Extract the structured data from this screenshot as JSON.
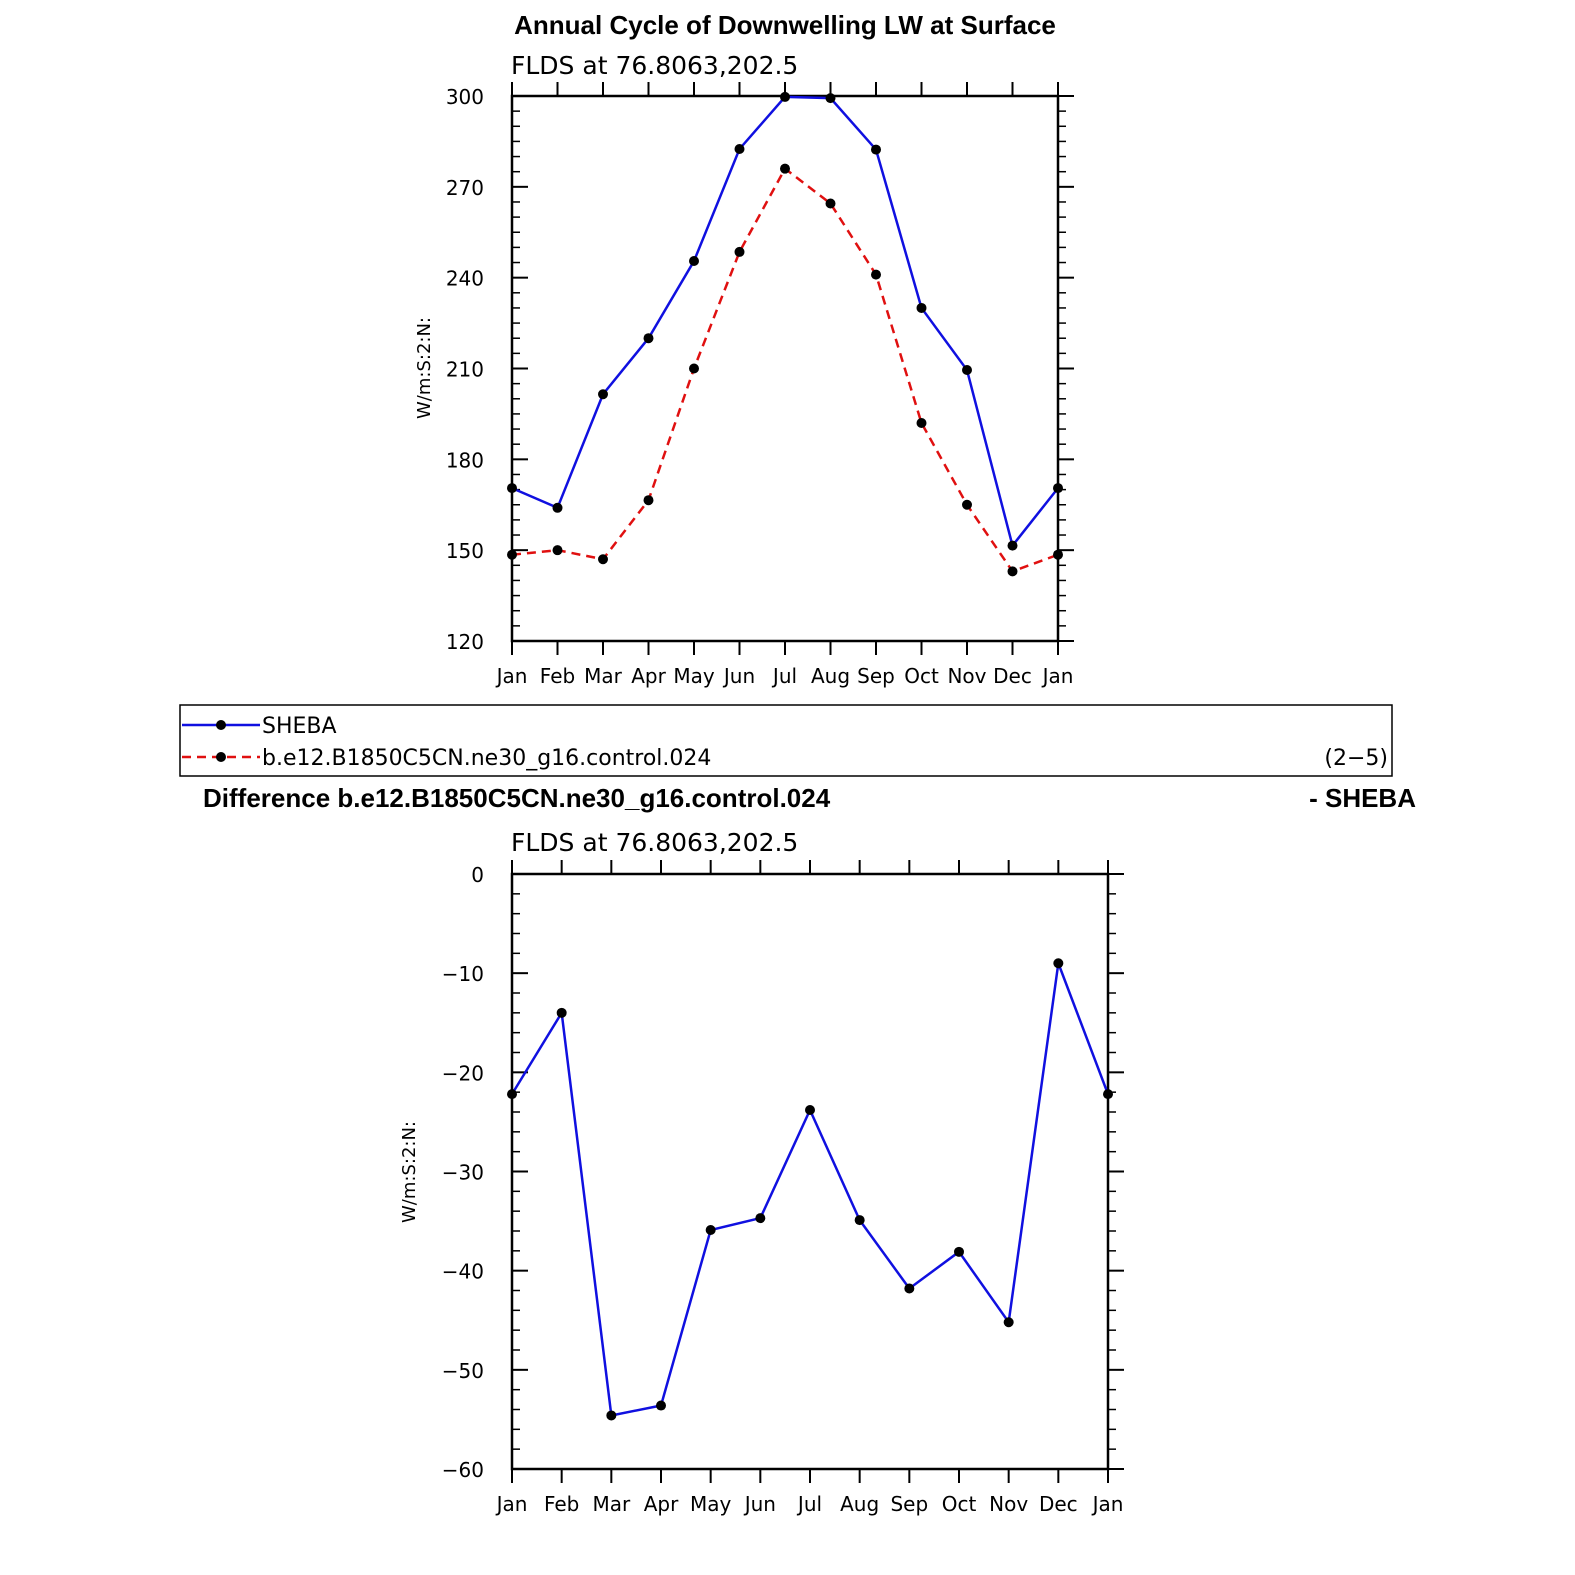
{
  "panel_label": "(2−5)",
  "colors": {
    "sheba": "#1010e0",
    "model": "#e01010",
    "marker": "#000000"
  },
  "legend": {
    "items": [
      {
        "label": "SHEBA",
        "color": "#1010e0",
        "dashed": false
      },
      {
        "label": "b.e12.B1850C5CN.ne30_g16.control.024",
        "color": "#e01010",
        "dashed": true
      }
    ]
  },
  "chart_data": [
    {
      "type": "line",
      "title": "Annual Cycle of Downwelling LW at Surface",
      "subtitle": "FLDS at 76.8063,202.5",
      "ylabel": "W/m:S:2:N:",
      "xlabel": "",
      "categories": [
        "Jan",
        "Feb",
        "Mar",
        "Apr",
        "May",
        "Jun",
        "Jul",
        "Aug",
        "Sep",
        "Oct",
        "Nov",
        "Dec",
        "Jan"
      ],
      "ylim": [
        120,
        300
      ],
      "yticks": [
        120,
        150,
        180,
        210,
        240,
        270,
        300
      ],
      "yminor_step": 5,
      "series": [
        {
          "name": "SHEBA",
          "style": "solid",
          "color": "#1010e0",
          "values": [
            170.5,
            164,
            201.5,
            220,
            245.5,
            282.5,
            299.7,
            299.3,
            282.3,
            230,
            209.5,
            151.5,
            170.5
          ]
        },
        {
          "name": "b.e12.B1850C5CN.ne30_g16.control.024",
          "style": "dashed",
          "color": "#e01010",
          "values": [
            148.5,
            150,
            147,
            166.5,
            210,
            248.5,
            276,
            264.5,
            241,
            192,
            165,
            143,
            148.5
          ]
        }
      ]
    },
    {
      "type": "line",
      "title": "Difference b.e12.B1850C5CN.ne30_g16.control.024",
      "title_right": "- SHEBA",
      "subtitle": "FLDS at 76.8063,202.5",
      "ylabel": "W/m:S:2:N:",
      "xlabel": "",
      "categories": [
        "Jan",
        "Feb",
        "Mar",
        "Apr",
        "May",
        "Jun",
        "Jul",
        "Aug",
        "Sep",
        "Oct",
        "Nov",
        "Dec",
        "Jan"
      ],
      "ylim": [
        -60,
        0
      ],
      "yticks": [
        -60,
        -50,
        -40,
        -30,
        -20,
        -10,
        0
      ],
      "yminor_step": 2,
      "series": [
        {
          "style": "solid",
          "color": "#1010e0",
          "values": [
            -22.2,
            -14,
            -54.6,
            -53.6,
            -35.9,
            -34.7,
            -23.8,
            -34.9,
            -41.8,
            -38.1,
            -45.2,
            -9,
            -22.2
          ]
        }
      ]
    }
  ]
}
